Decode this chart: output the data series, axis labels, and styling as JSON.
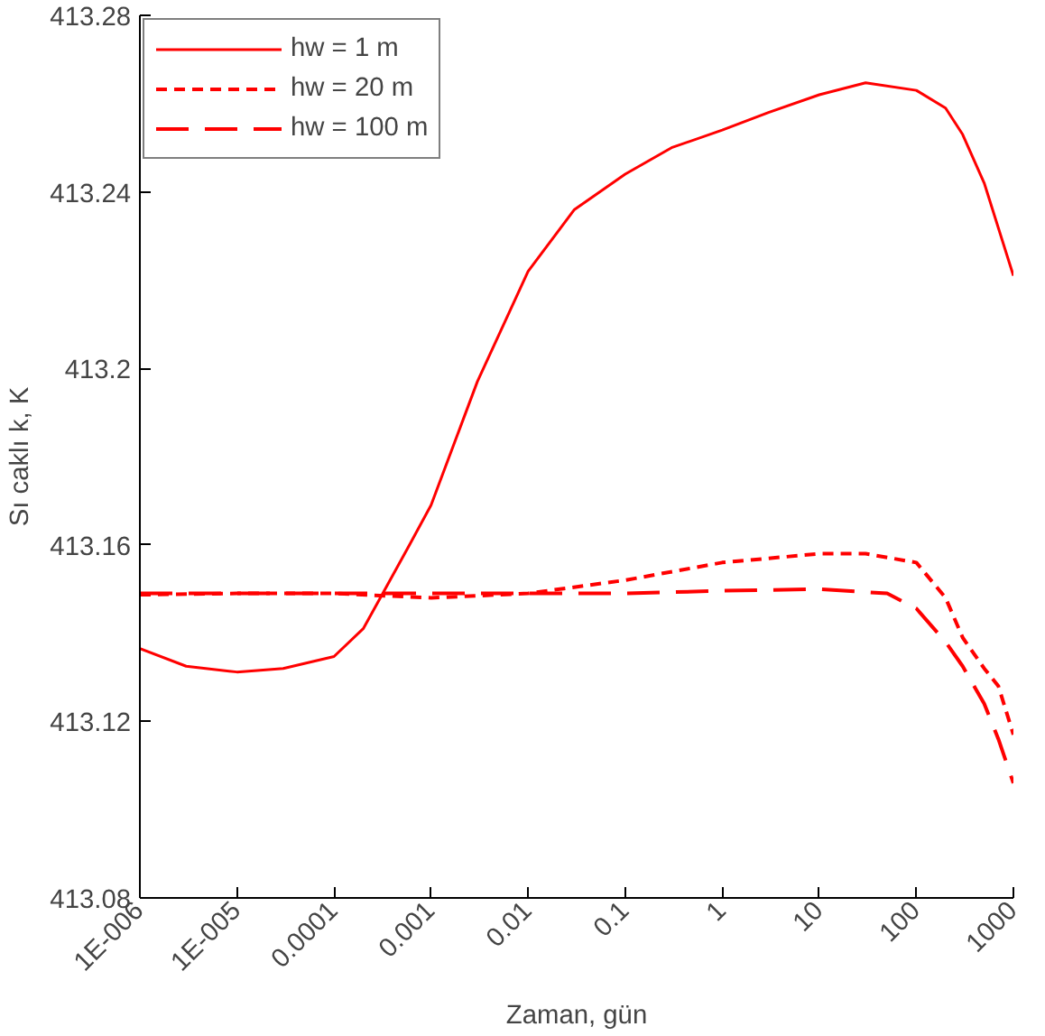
{
  "chart_data": {
    "type": "line",
    "xlabel": "Zaman, gün",
    "ylabel": "Sı caklı k, K",
    "log": "x",
    "xlim": [
      1e-06,
      1000
    ],
    "ylim": [
      413.08,
      413.28
    ],
    "xticks": [
      {
        "value": 1e-06,
        "label": "1E-006"
      },
      {
        "value": 1e-05,
        "label": "1E-005"
      },
      0.0001,
      0.001,
      0.01,
      0.1,
      1,
      10,
      100,
      1000
    ],
    "yticks": [
      413.08,
      413.12,
      413.16,
      413.2,
      413.24,
      413.28
    ],
    "grid": false,
    "legend": "top left",
    "series": [
      {
        "name": "hw = 1 m",
        "color": "#ff0000",
        "line_style": "solid",
        "x": [
          1e-06,
          3e-06,
          1e-05,
          3e-05,
          0.0001,
          0.0002,
          0.0003,
          0.0006,
          0.001,
          0.003,
          0.01,
          0.03,
          0.1,
          0.3,
          1,
          3,
          10,
          30,
          100,
          200,
          300,
          500,
          1000
        ],
        "values": [
          413.1365,
          413.1325,
          413.1312,
          413.132,
          413.1347,
          413.141,
          413.148,
          413.16,
          413.169,
          413.197,
          413.222,
          413.236,
          413.244,
          413.25,
          413.254,
          413.258,
          413.262,
          413.2647,
          413.263,
          413.259,
          413.253,
          413.242,
          413.221
        ]
      },
      {
        "name": "hw = 20 m",
        "color": "#ff0000",
        "line_style": "dashed",
        "x": [
          1e-06,
          1e-05,
          0.0001,
          0.001,
          0.01,
          0.1,
          1,
          10,
          30,
          100,
          200,
          300,
          500,
          700,
          1000
        ],
        "values": [
          413.1487,
          413.149,
          413.149,
          413.148,
          413.149,
          413.152,
          413.156,
          413.158,
          413.158,
          413.156,
          413.148,
          413.139,
          413.132,
          413.128,
          413.117
        ]
      },
      {
        "name": "hw = 100 m",
        "color": "#ff0000",
        "line_style": "dashed",
        "x": [
          1e-06,
          1e-05,
          0.0001,
          0.001,
          0.01,
          0.1,
          1,
          10,
          50,
          100,
          200,
          300,
          500,
          700,
          1000
        ],
        "values": [
          413.149,
          413.149,
          413.149,
          413.149,
          413.149,
          413.149,
          413.1496,
          413.15,
          413.149,
          413.1456,
          413.138,
          413.1325,
          413.124,
          413.116,
          413.106
        ]
      }
    ]
  }
}
